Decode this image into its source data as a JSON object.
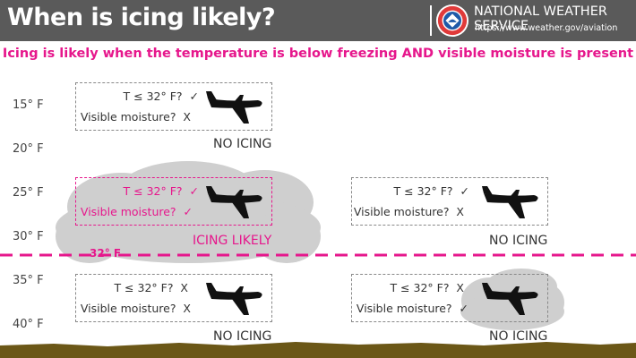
{
  "header": {
    "title": "When is icing likely?",
    "agency_name": "NATIONAL WEATHER SERVICE",
    "agency_url": "https://www.weather.gov/aviation"
  },
  "subtitle": "Icing is likely when the temperature is below freezing AND visible moisture is present",
  "temperature_labels": [
    "15° F",
    "20° F",
    "25° F",
    "30° F",
    "35° F",
    "40° F"
  ],
  "freezing_line_label": "32° F",
  "scenarios": [
    {
      "temp_question": "T ≤ 32° F?",
      "temp_answer": "✓",
      "moisture_question": "Visible moisture?",
      "moisture_answer": "X",
      "result": "NO ICING"
    },
    {
      "temp_question": "T ≤ 32° F?",
      "temp_answer": "✓",
      "moisture_question": "Visible moisture?",
      "moisture_answer": "✓",
      "result": "ICING LIKELY"
    },
    {
      "temp_question": "T ≤ 32° F?",
      "temp_answer": "✓",
      "moisture_question": "Visible moisture?",
      "moisture_answer": "X",
      "result": "NO ICING"
    },
    {
      "temp_question": "T ≤ 32° F?",
      "temp_answer": "X",
      "moisture_question": "Visible moisture?",
      "moisture_answer": "X",
      "result": "NO ICING"
    },
    {
      "temp_question": "T ≤ 32° F?",
      "temp_answer": "X",
      "moisture_question": "Visible moisture?",
      "moisture_answer": "✓",
      "result": "NO ICING"
    }
  ],
  "colors": {
    "header_bg": "#5a5a5a",
    "accent": "#e6178c",
    "cloud": "#cfcfcf",
    "ground": "#6b5717"
  }
}
